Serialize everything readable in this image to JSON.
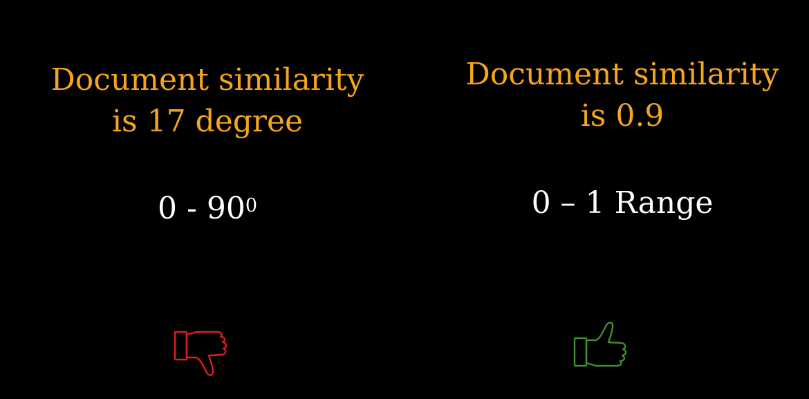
{
  "left": {
    "heading_line1": "Document similarity",
    "heading_line2": "is 17 degree",
    "range_text": "0 - 90",
    "range_superscript": "0",
    "icon": "thumbs-down-icon",
    "icon_color": "#E01E1E"
  },
  "right": {
    "heading_line1": "Document similarity",
    "heading_line2": "is 0.9",
    "range_text": "0 – 1 Range",
    "icon": "thumbs-up-icon",
    "icon_color": "#3F8F2F"
  },
  "colors": {
    "background": "#000000",
    "heading": "#F5A51B",
    "range": "#FFFFFF"
  }
}
